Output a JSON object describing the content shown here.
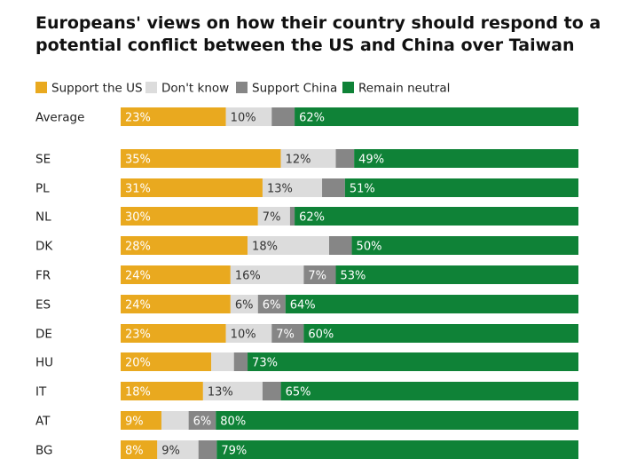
{
  "chart_data": {
    "type": "bar",
    "orientation": "horizontal",
    "stacked": true,
    "normalized": true,
    "title": "Europeans' views on how their country should respond to a potential conflict between the US and China over Taiwan",
    "xlabel": "",
    "ylabel": "",
    "legend_position": "top-left",
    "grid": false,
    "series": [
      {
        "name": "Support the US",
        "color": "#e9a91f",
        "values": [
          23,
          35,
          31,
          30,
          28,
          24,
          24,
          23,
          20,
          18,
          9,
          8
        ],
        "labels": [
          "23%",
          "35%",
          "31%",
          "30%",
          "28%",
          "24%",
          "24%",
          "23%",
          "20%",
          "18%",
          "9%",
          "8%"
        ]
      },
      {
        "name": "Don't know",
        "color": "#dcdcdc",
        "values": [
          10,
          12,
          13,
          7,
          18,
          16,
          6,
          10,
          5,
          13,
          6,
          9
        ],
        "labels": [
          "10%",
          "12%",
          "13%",
          "7%",
          "18%",
          "16%",
          "6%",
          "10%",
          "",
          "13%",
          "",
          "9%"
        ]
      },
      {
        "name": "Support China",
        "color": "#868686",
        "values": [
          5,
          4,
          5,
          1,
          5,
          7,
          6,
          7,
          3,
          4,
          6,
          4
        ],
        "labels": [
          "",
          "",
          "",
          "",
          "",
          "7%",
          "6%",
          "7%",
          "",
          "",
          "6%",
          ""
        ]
      },
      {
        "name": "Remain neutral",
        "color": "#0f8237",
        "values": [
          62,
          49,
          51,
          62,
          50,
          53,
          64,
          60,
          73,
          65,
          80,
          79
        ],
        "labels": [
          "62%",
          "49%",
          "51%",
          "62%",
          "50%",
          "53%",
          "64%",
          "60%",
          "73%",
          "65%",
          "80%",
          "79%"
        ]
      }
    ],
    "categories": [
      "Average",
      "SE",
      "PL",
      "NL",
      "DK",
      "FR",
      "ES",
      "DE",
      "HU",
      "IT",
      "AT",
      "BG"
    ]
  }
}
